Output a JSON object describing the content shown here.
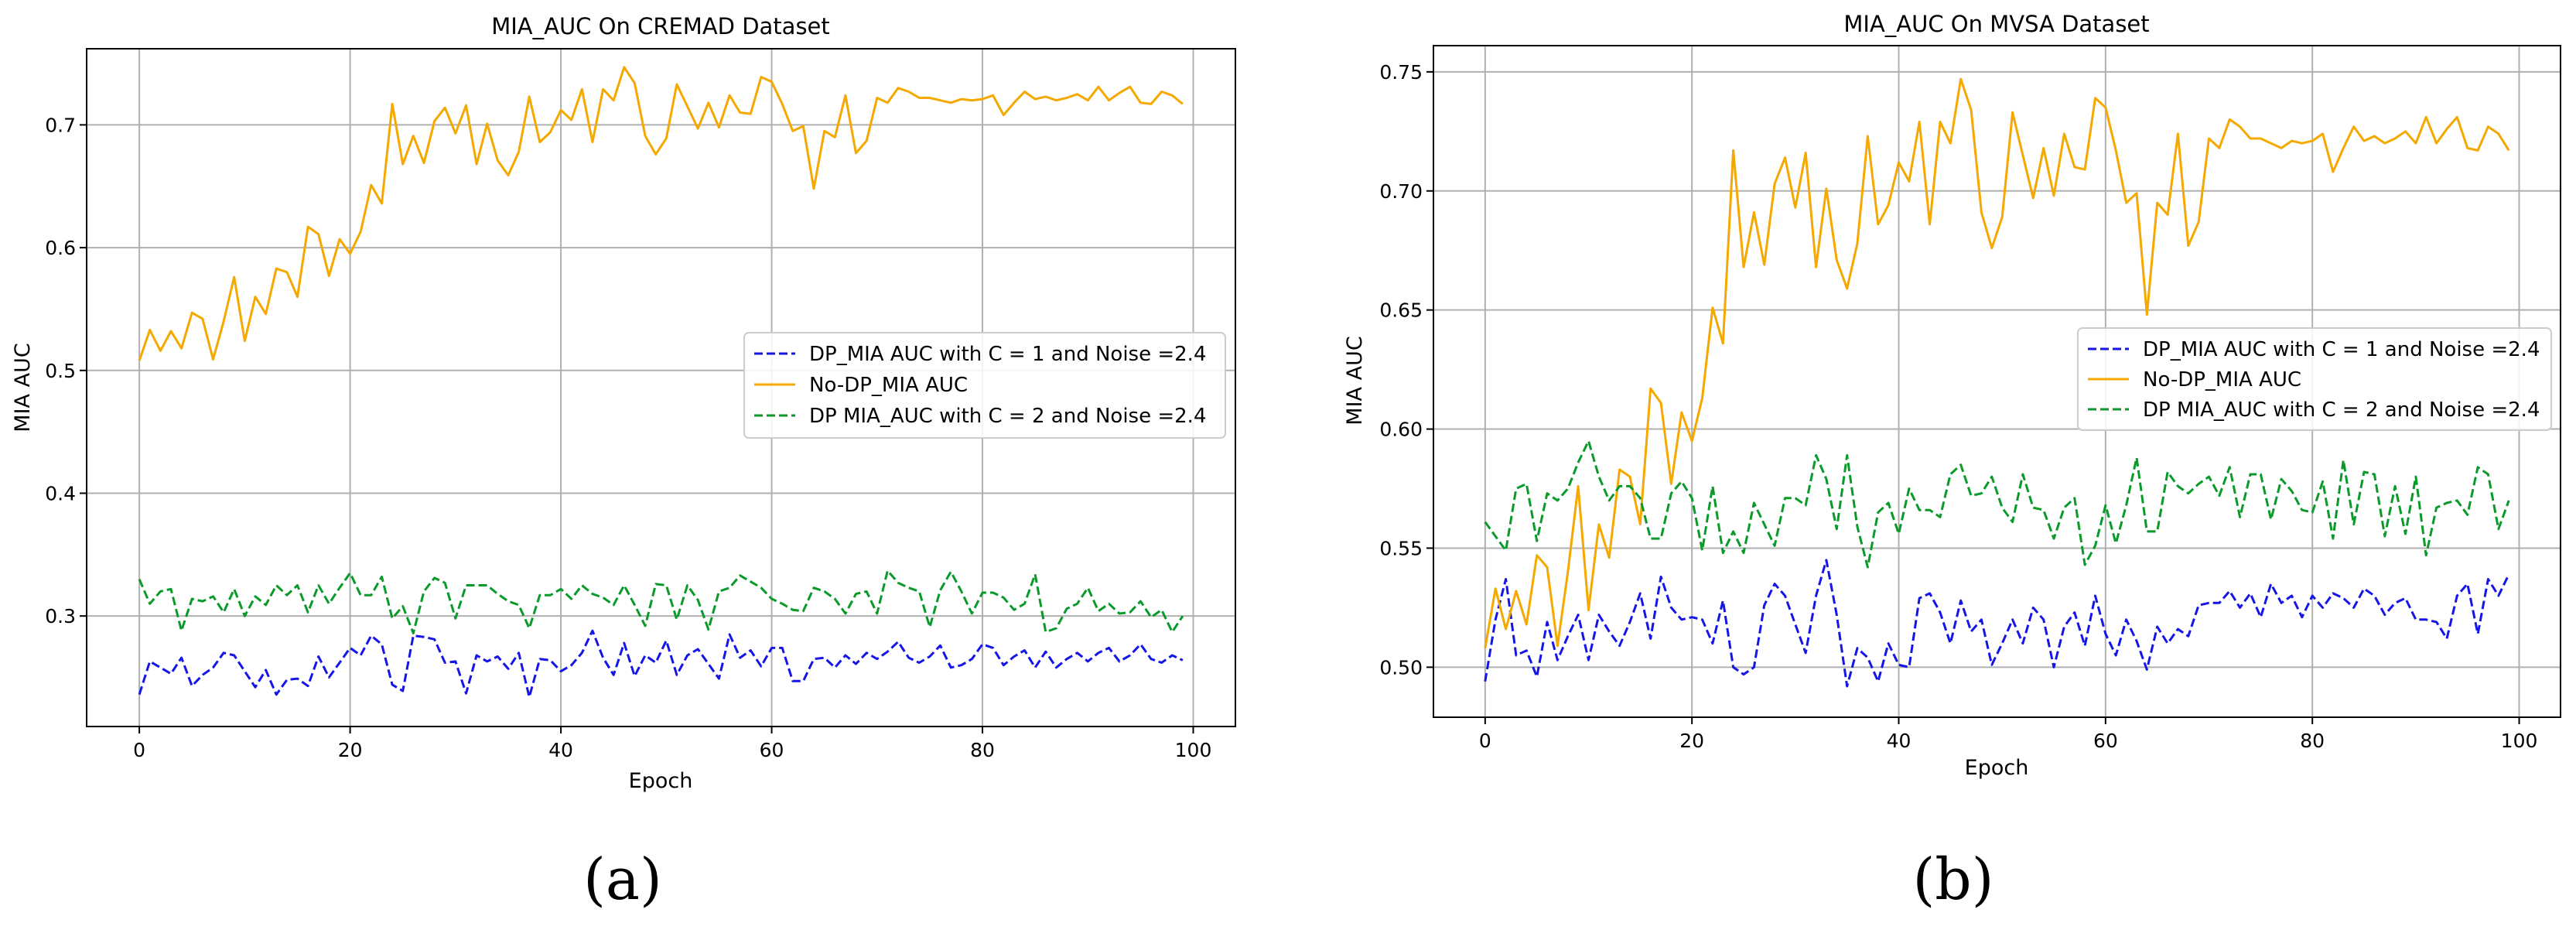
{
  "chart_data": [
    {
      "type": "line",
      "title": "MIA_AUC On CREMAD Dataset",
      "xlabel": "Epoch",
      "ylabel": "MIA AUC",
      "xlim": [
        -5,
        104
      ],
      "ylim": [
        0.21,
        0.762
      ],
      "xticks": [
        0,
        20,
        40,
        60,
        80,
        100
      ],
      "yticks": [
        0.3,
        0.4,
        0.5,
        0.6,
        0.7
      ],
      "ytick_labels": [
        "0.3",
        "0.4",
        "0.5",
        "0.6",
        "0.7"
      ],
      "grid": true,
      "legend_position": "center-right",
      "panel_label": "(a)",
      "series": [
        {
          "name": "DP_MIA AUC with C = 1 and Noise =2.4",
          "color": "#1515e8",
          "style": "dashed",
          "x_start": 0,
          "values": [
            0.236,
            0.263,
            0.258,
            0.253,
            0.266,
            0.243,
            0.252,
            0.258,
            0.27,
            0.268,
            0.255,
            0.242,
            0.256,
            0.236,
            0.248,
            0.249,
            0.243,
            0.267,
            0.25,
            0.262,
            0.274,
            0.268,
            0.284,
            0.277,
            0.244,
            0.239,
            0.284,
            0.283,
            0.281,
            0.262,
            0.263,
            0.237,
            0.268,
            0.263,
            0.267,
            0.257,
            0.27,
            0.234,
            0.265,
            0.264,
            0.255,
            0.26,
            0.27,
            0.288,
            0.266,
            0.252,
            0.278,
            0.251,
            0.268,
            0.262,
            0.28,
            0.252,
            0.268,
            0.273,
            0.261,
            0.249,
            0.285,
            0.266,
            0.272,
            0.259,
            0.274,
            0.274,
            0.247,
            0.247,
            0.265,
            0.266,
            0.258,
            0.268,
            0.261,
            0.27,
            0.265,
            0.271,
            0.279,
            0.266,
            0.262,
            0.267,
            0.276,
            0.258,
            0.26,
            0.265,
            0.277,
            0.274,
            0.26,
            0.267,
            0.272,
            0.258,
            0.271,
            0.258,
            0.265,
            0.27,
            0.263,
            0.27,
            0.274,
            0.263,
            0.268,
            0.277,
            0.265,
            0.262,
            0.268,
            0.264
          ]
        },
        {
          "name": "No-DP_MIA AUC",
          "color": "#f5a800",
          "style": "solid",
          "x_start": 0,
          "values": [
            0.508,
            0.533,
            0.516,
            0.532,
            0.518,
            0.547,
            0.542,
            0.509,
            0.54,
            0.576,
            0.524,
            0.56,
            0.546,
            0.583,
            0.58,
            0.56,
            0.617,
            0.611,
            0.577,
            0.607,
            0.595,
            0.613,
            0.651,
            0.636,
            0.717,
            0.668,
            0.691,
            0.669,
            0.703,
            0.714,
            0.693,
            0.716,
            0.668,
            0.701,
            0.671,
            0.659,
            0.678,
            0.723,
            0.686,
            0.694,
            0.712,
            0.704,
            0.729,
            0.686,
            0.729,
            0.72,
            0.747,
            0.734,
            0.691,
            0.676,
            0.689,
            0.733,
            0.715,
            0.697,
            0.718,
            0.698,
            0.724,
            0.71,
            0.709,
            0.739,
            0.735,
            0.717,
            0.695,
            0.699,
            0.648,
            0.695,
            0.69,
            0.724,
            0.677,
            0.687,
            0.722,
            0.718,
            0.73,
            0.727,
            0.722,
            0.722,
            0.72,
            0.718,
            0.721,
            0.72,
            0.721,
            0.724,
            0.708,
            0.718,
            0.727,
            0.721,
            0.723,
            0.72,
            0.722,
            0.725,
            0.72,
            0.731,
            0.72,
            0.726,
            0.731,
            0.718,
            0.717,
            0.727,
            0.724,
            0.717
          ]
        },
        {
          "name": "DP MIA_AUC with C = 2 and Noise =2.4",
          "color": "#0a9a2a",
          "style": "dashed",
          "x_start": 0,
          "values": [
            0.33,
            0.31,
            0.32,
            0.322,
            0.288,
            0.314,
            0.312,
            0.316,
            0.303,
            0.322,
            0.3,
            0.316,
            0.309,
            0.325,
            0.317,
            0.325,
            0.303,
            0.325,
            0.31,
            0.323,
            0.335,
            0.317,
            0.317,
            0.332,
            0.298,
            0.308,
            0.286,
            0.32,
            0.331,
            0.327,
            0.298,
            0.325,
            0.325,
            0.325,
            0.318,
            0.312,
            0.309,
            0.29,
            0.317,
            0.317,
            0.322,
            0.314,
            0.325,
            0.318,
            0.315,
            0.309,
            0.325,
            0.309,
            0.292,
            0.326,
            0.325,
            0.297,
            0.325,
            0.313,
            0.289,
            0.32,
            0.323,
            0.333,
            0.328,
            0.323,
            0.314,
            0.31,
            0.305,
            0.304,
            0.323,
            0.32,
            0.314,
            0.302,
            0.318,
            0.32,
            0.302,
            0.337,
            0.327,
            0.323,
            0.32,
            0.291,
            0.321,
            0.336,
            0.32,
            0.302,
            0.319,
            0.319,
            0.315,
            0.305,
            0.31,
            0.334,
            0.287,
            0.29,
            0.306,
            0.31,
            0.323,
            0.304,
            0.31,
            0.302,
            0.303,
            0.312,
            0.299,
            0.305,
            0.287,
            0.3
          ]
        }
      ]
    },
    {
      "type": "line",
      "title": "MIA_AUC On MVSA Dataset",
      "xlabel": "Epoch",
      "ylabel": "MIA AUC",
      "xlim": [
        -5,
        104
      ],
      "ylim": [
        0.479,
        0.761
      ],
      "xticks": [
        0,
        20,
        40,
        60,
        80,
        100
      ],
      "yticks": [
        0.5,
        0.55,
        0.6,
        0.65,
        0.7,
        0.75
      ],
      "ytick_labels": [
        "0.50",
        "0.55",
        "0.60",
        "0.65",
        "0.70",
        "0.75"
      ],
      "grid": true,
      "legend_position": "center-right",
      "panel_label": "(b)",
      "series": [
        {
          "name": "DP_MIA AUC with C = 1 and Noise =2.4",
          "color": "#1515e8",
          "style": "dashed",
          "x_start": 0,
          "values": [
            0.494,
            0.52,
            0.537,
            0.505,
            0.507,
            0.496,
            0.519,
            0.503,
            0.513,
            0.522,
            0.503,
            0.522,
            0.515,
            0.509,
            0.519,
            0.531,
            0.512,
            0.538,
            0.525,
            0.52,
            0.521,
            0.52,
            0.51,
            0.528,
            0.5,
            0.497,
            0.5,
            0.526,
            0.535,
            0.53,
            0.518,
            0.506,
            0.53,
            0.545,
            0.522,
            0.492,
            0.508,
            0.504,
            0.494,
            0.51,
            0.501,
            0.5,
            0.529,
            0.531,
            0.523,
            0.51,
            0.528,
            0.515,
            0.52,
            0.501,
            0.51,
            0.52,
            0.51,
            0.525,
            0.52,
            0.5,
            0.517,
            0.523,
            0.509,
            0.53,
            0.514,
            0.505,
            0.52,
            0.511,
            0.499,
            0.517,
            0.51,
            0.516,
            0.513,
            0.526,
            0.527,
            0.527,
            0.532,
            0.525,
            0.531,
            0.521,
            0.535,
            0.527,
            0.53,
            0.521,
            0.53,
            0.525,
            0.531,
            0.529,
            0.525,
            0.533,
            0.53,
            0.522,
            0.527,
            0.529,
            0.52,
            0.52,
            0.519,
            0.512,
            0.53,
            0.535,
            0.514,
            0.537,
            0.53,
            0.539
          ]
        },
        {
          "name": "No-DP_MIA AUC",
          "color": "#f5a800",
          "style": "solid",
          "x_start": 0,
          "values": [
            0.508,
            0.533,
            0.516,
            0.532,
            0.518,
            0.547,
            0.542,
            0.509,
            0.54,
            0.576,
            0.524,
            0.56,
            0.546,
            0.583,
            0.58,
            0.56,
            0.617,
            0.611,
            0.577,
            0.607,
            0.595,
            0.613,
            0.651,
            0.636,
            0.717,
            0.668,
            0.691,
            0.669,
            0.703,
            0.714,
            0.693,
            0.716,
            0.668,
            0.701,
            0.671,
            0.659,
            0.678,
            0.723,
            0.686,
            0.694,
            0.712,
            0.704,
            0.729,
            0.686,
            0.729,
            0.72,
            0.747,
            0.734,
            0.691,
            0.676,
            0.689,
            0.733,
            0.715,
            0.697,
            0.718,
            0.698,
            0.724,
            0.71,
            0.709,
            0.739,
            0.735,
            0.717,
            0.695,
            0.699,
            0.648,
            0.695,
            0.69,
            0.724,
            0.677,
            0.687,
            0.722,
            0.718,
            0.73,
            0.727,
            0.722,
            0.722,
            0.72,
            0.718,
            0.721,
            0.72,
            0.721,
            0.724,
            0.708,
            0.718,
            0.727,
            0.721,
            0.723,
            0.72,
            0.722,
            0.725,
            0.72,
            0.731,
            0.72,
            0.726,
            0.731,
            0.718,
            0.717,
            0.727,
            0.724,
            0.717
          ]
        },
        {
          "name": "DP MIA_AUC with C = 2 and Noise =2.4",
          "color": "#0a9a2a",
          "style": "dashed",
          "x_start": 0,
          "values": [
            0.561,
            0.555,
            0.549,
            0.575,
            0.577,
            0.553,
            0.573,
            0.57,
            0.575,
            0.586,
            0.595,
            0.58,
            0.57,
            0.576,
            0.576,
            0.571,
            0.554,
            0.554,
            0.573,
            0.578,
            0.571,
            0.549,
            0.576,
            0.548,
            0.557,
            0.548,
            0.569,
            0.56,
            0.551,
            0.571,
            0.571,
            0.568,
            0.589,
            0.579,
            0.558,
            0.589,
            0.559,
            0.542,
            0.565,
            0.569,
            0.556,
            0.575,
            0.566,
            0.566,
            0.563,
            0.581,
            0.585,
            0.572,
            0.573,
            0.58,
            0.567,
            0.561,
            0.581,
            0.567,
            0.566,
            0.554,
            0.567,
            0.571,
            0.543,
            0.551,
            0.568,
            0.552,
            0.568,
            0.588,
            0.557,
            0.557,
            0.582,
            0.576,
            0.573,
            0.577,
            0.58,
            0.572,
            0.584,
            0.563,
            0.581,
            0.581,
            0.562,
            0.579,
            0.574,
            0.566,
            0.565,
            0.578,
            0.554,
            0.587,
            0.56,
            0.582,
            0.581,
            0.555,
            0.576,
            0.556,
            0.58,
            0.547,
            0.567,
            0.569,
            0.57,
            0.564,
            0.584,
            0.581,
            0.558,
            0.57
          ]
        }
      ]
    }
  ]
}
